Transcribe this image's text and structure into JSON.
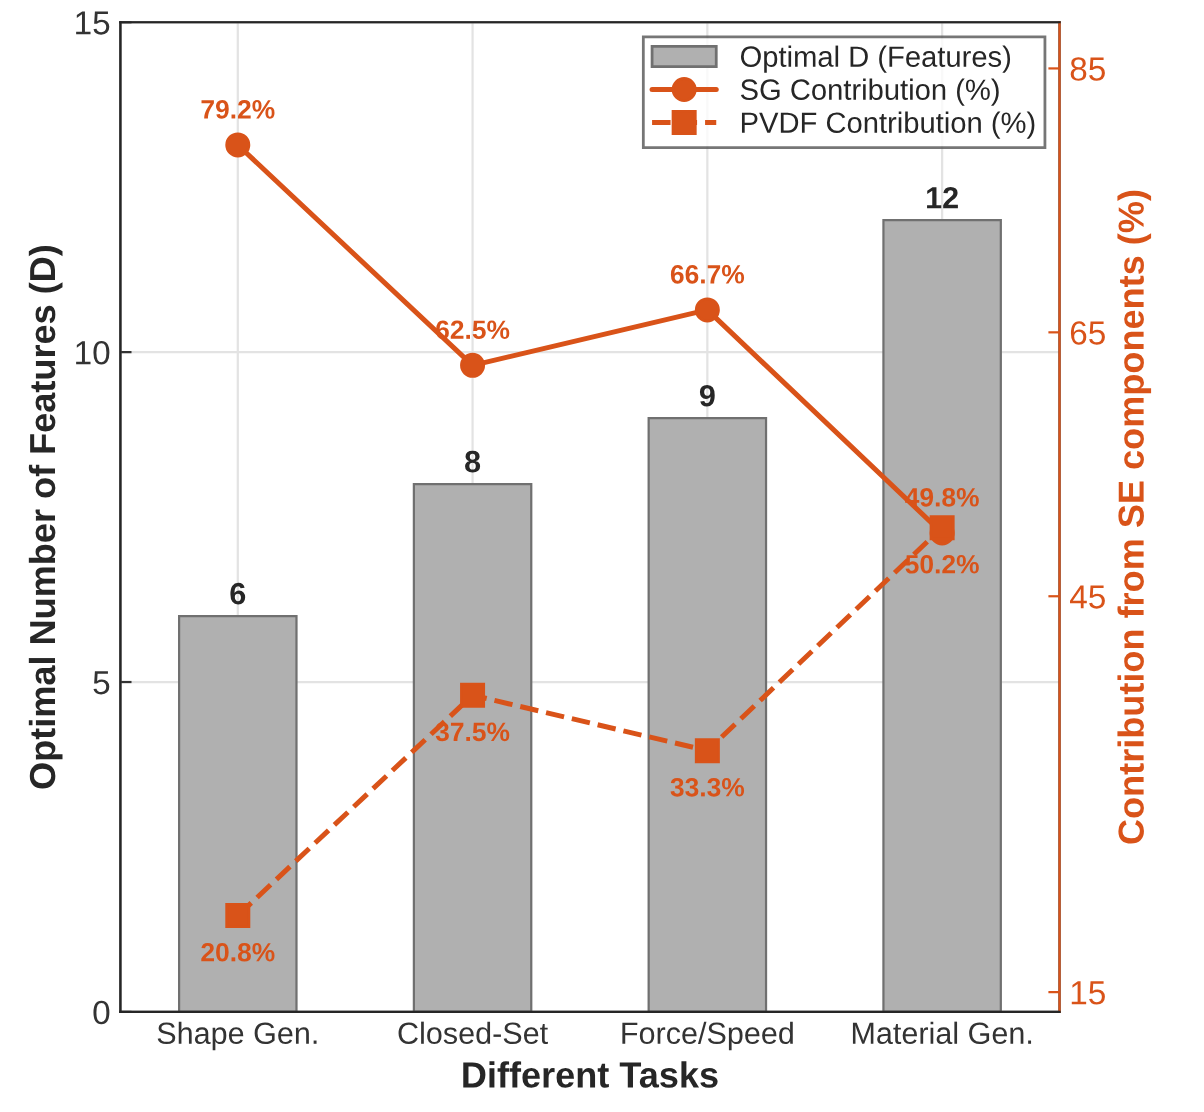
{
  "chart_data": {
    "type": "bar",
    "xlabel": "Different Tasks",
    "ylabel": "Optimal Number of Features (D)",
    "y2label": "Contribution from SE components (%)",
    "categories": [
      "Shape Gen.",
      "Closed-Set",
      "Force/Speed",
      "Material Gen."
    ],
    "series": [
      {
        "name": "Optimal D (Features)",
        "color": "#b0b0b0",
        "values": [
          6,
          8,
          9,
          12
        ],
        "value_labels": [
          "6",
          "8",
          "9",
          "12"
        ]
      },
      {
        "name": "SG Contribution (%)",
        "type": "line",
        "axis": "y2",
        "marker": "circle",
        "line_style": "solid",
        "color": "#d95319",
        "values": [
          79.2,
          62.5,
          66.7,
          49.8
        ],
        "value_labels": [
          "79.2%",
          "62.5%",
          "66.7%",
          "49.8%"
        ]
      },
      {
        "name": "PVDF Contribution (%)",
        "type": "line",
        "axis": "y2",
        "marker": "square",
        "line_style": "dashed",
        "color": "#d95319",
        "values": [
          20.8,
          37.5,
          33.3,
          50.2
        ],
        "value_labels": [
          "20.8%",
          "37.5%",
          "33.3%",
          "50.2%"
        ]
      }
    ],
    "ylim": [
      0,
      15
    ],
    "yticks": [
      0,
      5,
      10,
      15
    ],
    "y2lim": [
      13.5,
      88.5
    ],
    "y2ticks": [
      15,
      45,
      65,
      85
    ],
    "grid": true,
    "legend": "top right"
  }
}
